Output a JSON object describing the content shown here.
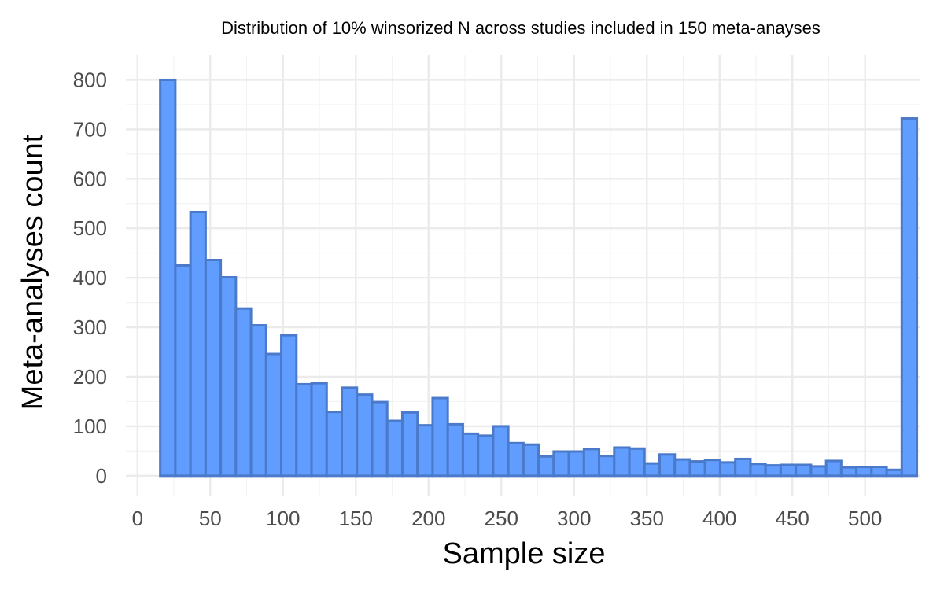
{
  "chart_data": {
    "type": "bar",
    "title": "Distribution of 10% winsorized N across studies included in 150 meta-anayses",
    "xlabel": "Sample size",
    "ylabel": "Meta-analyses count",
    "xlim": [
      -8,
      538
    ],
    "ylim": [
      -40,
      850
    ],
    "xticks": [
      0,
      50,
      100,
      150,
      200,
      250,
      300,
      350,
      400,
      450,
      500
    ],
    "xtick_labels": [
      "0",
      "50",
      "100",
      "150",
      "200",
      "250",
      "300",
      "350",
      "400",
      "450",
      "500"
    ],
    "yticks": [
      0,
      100,
      200,
      300,
      400,
      500,
      600,
      700,
      800
    ],
    "ytick_labels": [
      "0",
      "100",
      "200",
      "300",
      "400",
      "500",
      "600",
      "700",
      "800"
    ],
    "bin_width": 10.4,
    "bin_start": 15.6,
    "values": [
      800,
      425,
      533,
      436,
      401,
      338,
      304,
      246,
      284,
      185,
      187,
      129,
      178,
      164,
      149,
      111,
      128,
      102,
      157,
      104,
      85,
      81,
      100,
      66,
      63,
      39,
      49,
      49,
      54,
      40,
      57,
      55,
      25,
      43,
      33,
      29,
      32,
      27,
      34,
      24,
      21,
      22,
      22,
      19,
      30,
      17,
      18,
      18,
      12,
      722
    ],
    "colors": {
      "fill": "#619CFF",
      "stroke": "#4A7AC9"
    },
    "grid": true,
    "legend": "none"
  }
}
